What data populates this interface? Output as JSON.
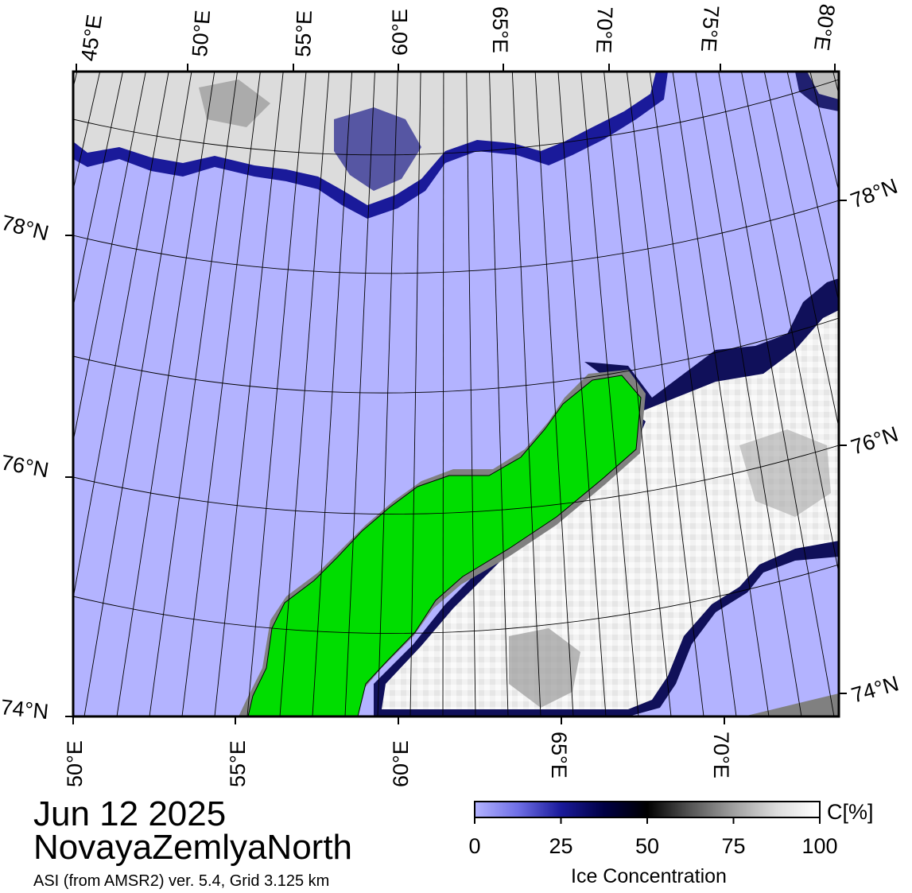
{
  "title": {
    "date": "Jun 12 2025",
    "region": "NovayaZemlyaNorth",
    "product": "ASI (from AMSR2) ver. 5.4,  Grid 3.125 km"
  },
  "map": {
    "top_lon_labels": [
      "45°E",
      "50°E",
      "55°E",
      "60°E",
      "65°E",
      "70°E",
      "75°E",
      "80°E"
    ],
    "bottom_lon_labels": [
      "50°E",
      "55°E",
      "60°E",
      "65°E",
      "70°E"
    ],
    "left_lat_labels": [
      "78°N",
      "76°N",
      "74°N"
    ],
    "right_lat_labels": [
      "78°N",
      "76°N",
      "74°N"
    ],
    "colors": {
      "open_water": "#b3b3ff",
      "land": "#00dd00",
      "coast_mask": "#808080",
      "ice_high": "#f4f4f4",
      "ice_mid": "#8a8a8a",
      "ice_low": "#000044",
      "ice_edge": "#1a1a9a"
    }
  },
  "colorbar": {
    "unit": "C[%]",
    "ticks": [
      "0",
      "25",
      "50",
      "75",
      "100"
    ],
    "caption": "Ice Concentration",
    "stops": [
      "#b3b3ff",
      "#6f6fe6",
      "#1a1a9a",
      "#000044",
      "#000000",
      "#555555",
      "#a0a0a0",
      "#dcdcdc",
      "#ffffff"
    ]
  }
}
